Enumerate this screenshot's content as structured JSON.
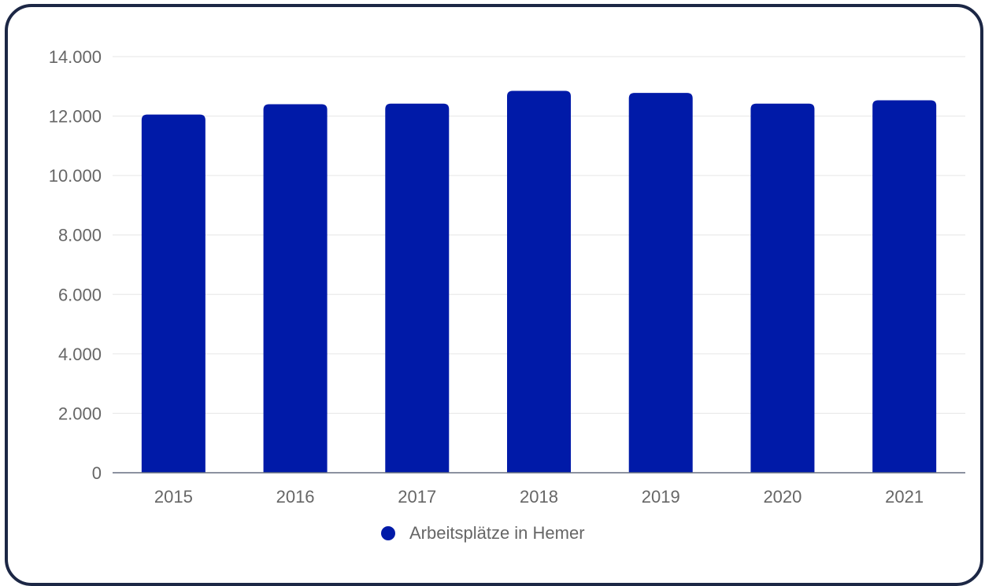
{
  "colors": {
    "bar": "#001aa8",
    "grid": "#e6e6e6",
    "axis": "#666e80",
    "tick_text": "#666666",
    "border": "#1c2745"
  },
  "chart_data": {
    "type": "bar",
    "categories": [
      "2015",
      "2016",
      "2017",
      "2018",
      "2019",
      "2020",
      "2021"
    ],
    "series": [
      {
        "name": "Arbeitsplätze in Hemer",
        "values": [
          12050,
          12400,
          12420,
          12850,
          12780,
          12420,
          12530
        ]
      }
    ],
    "ylim": [
      0,
      14000
    ],
    "yticks": [
      0,
      2000,
      4000,
      6000,
      8000,
      10000,
      12000,
      14000
    ],
    "ytick_labels": [
      "0",
      "2.000",
      "4.000",
      "6.000",
      "8.000",
      "10.000",
      "12.000",
      "14.000"
    ],
    "grid": true,
    "legend_position": "bottom"
  }
}
